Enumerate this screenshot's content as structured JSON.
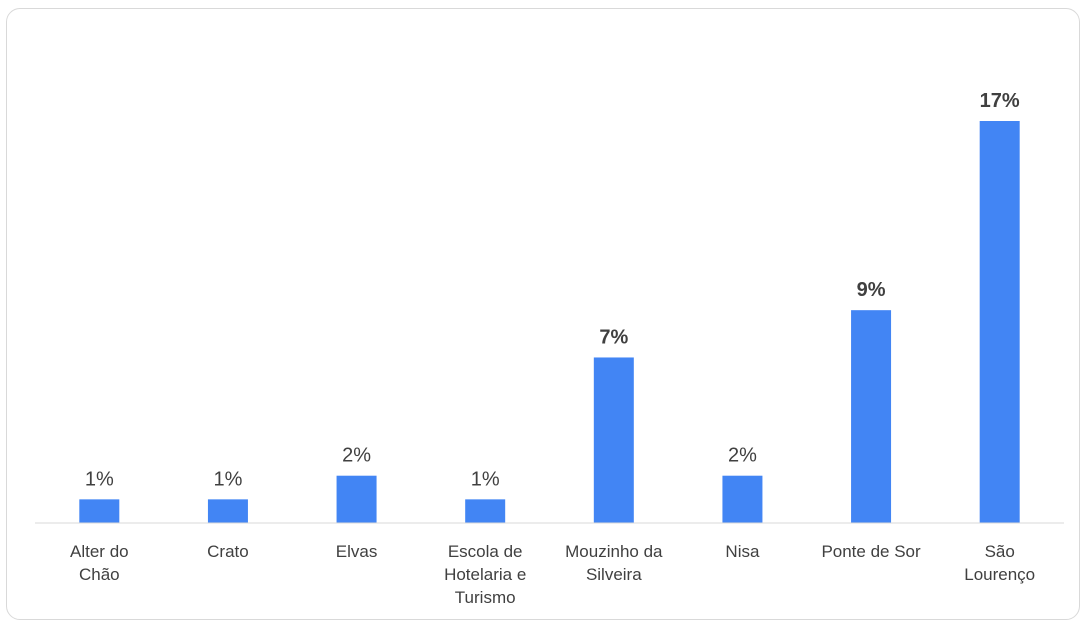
{
  "chart_data": {
    "type": "bar",
    "categories": [
      [
        "Alter do",
        "Chão"
      ],
      [
        "Crato"
      ],
      [
        "Elvas"
      ],
      [
        "Escola de",
        "Hotelaria e",
        "Turismo"
      ],
      [
        "Mouzinho da",
        "Silveira"
      ],
      [
        "Nisa"
      ],
      [
        "Ponte de Sor"
      ],
      [
        "São",
        "Lourenço"
      ]
    ],
    "values": [
      1,
      1,
      2,
      1,
      7,
      2,
      9,
      17
    ],
    "labels": [
      "1%",
      "1%",
      "2%",
      "1%",
      "7%",
      "2%",
      "9%",
      "17%"
    ],
    "bold_labels": [
      false,
      false,
      false,
      false,
      true,
      false,
      true,
      true
    ],
    "ylim": [
      0,
      17
    ],
    "bar_color": "#4285f4",
    "axis_color": "#d9d9d9",
    "grid": false
  }
}
